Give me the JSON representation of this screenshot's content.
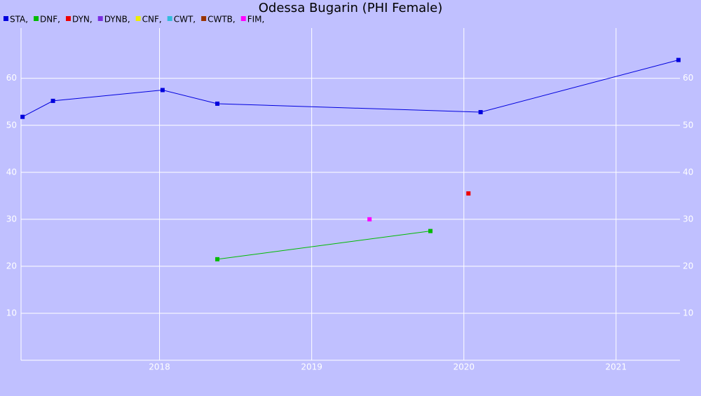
{
  "chart_data": {
    "type": "line",
    "title": "Odessa Bugarin (PHI Female)",
    "series": [
      {
        "name": "STA,",
        "color": "#0000dd",
        "x": [
          2017.1,
          2017.3,
          2018.02,
          2018.38,
          2020.11,
          2021.41
        ],
        "values": [
          51.8,
          55.2,
          57.5,
          54.6,
          52.8,
          63.9
        ]
      },
      {
        "name": "DNF,",
        "color": "#00bb00",
        "x": [
          2018.38,
          2019.78
        ],
        "values": [
          21.5,
          27.5
        ]
      },
      {
        "name": "DYN,",
        "color": "#ee0000",
        "x": [
          2020.03
        ],
        "values": [
          35.5
        ]
      },
      {
        "name": "DYNB,",
        "color": "#7a2de0",
        "x": [],
        "values": []
      },
      {
        "name": "CNF,",
        "color": "#eeee00",
        "x": [],
        "values": []
      },
      {
        "name": "CWT,",
        "color": "#33bbdd",
        "x": [],
        "values": []
      },
      {
        "name": "CWTB,",
        "color": "#993300",
        "x": [],
        "values": []
      },
      {
        "name": "FIM,",
        "color": "#ff00ff",
        "x": [
          2019.38
        ],
        "values": [
          30.0
        ]
      }
    ],
    "xlim": [
      2017.09,
      2021.42
    ],
    "xticks": [
      2018,
      2019,
      2020,
      2021
    ],
    "ylim": [
      0,
      70.7
    ],
    "yticks": [
      10,
      20,
      30,
      40,
      50,
      60
    ],
    "grid": true
  }
}
